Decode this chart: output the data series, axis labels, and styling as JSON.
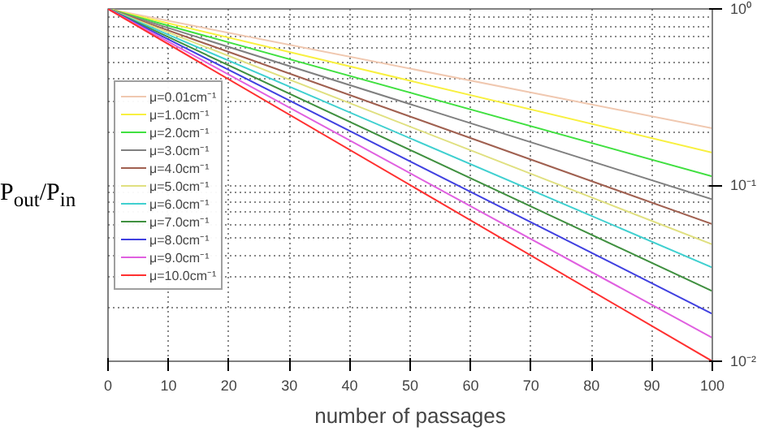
{
  "chart_data": {
    "type": "line",
    "xlabel": "number of passages",
    "ylabel": "P$_{out}$/P$_{in}$",
    "xlim": [
      0,
      100
    ],
    "xticks": [
      0,
      10,
      20,
      30,
      40,
      50,
      60,
      70,
      80,
      90,
      100
    ],
    "ylim": [
      0.01,
      1
    ],
    "yticks": [
      {
        "value": 1,
        "label": "10⁰"
      },
      {
        "value": 0.1,
        "label": "10⁻¹"
      },
      {
        "value": 0.01,
        "label": "10⁻²"
      }
    ],
    "x": [
      0,
      100
    ],
    "log": true,
    "grid": true,
    "legend": "left",
    "line_style": "solid",
    "marker": "none",
    "series": [
      {
        "name": "μ=0.01cm⁻¹",
        "color": "#f0c8b0",
        "values": [
          1,
          0.21
        ]
      },
      {
        "name": "μ=1.0cm⁻¹",
        "color": "#f8f040",
        "values": [
          1,
          0.153
        ]
      },
      {
        "name": "μ=2.0cm⁻¹",
        "color": "#40e040",
        "values": [
          1,
          0.112
        ]
      },
      {
        "name": "μ=3.0cm⁻¹",
        "color": "#808080",
        "values": [
          1,
          0.083
        ]
      },
      {
        "name": "μ=4.0cm⁻¹",
        "color": "#a06050",
        "values": [
          1,
          0.06
        ]
      },
      {
        "name": "μ=5.0cm⁻¹",
        "color": "#e0e080",
        "values": [
          1,
          0.046
        ]
      },
      {
        "name": "μ=6.0cm⁻¹",
        "color": "#40d0d0",
        "values": [
          1,
          0.034
        ]
      },
      {
        "name": "μ=7.0cm⁻¹",
        "color": "#409040",
        "values": [
          1,
          0.025
        ]
      },
      {
        "name": "μ=8.0cm⁻¹",
        "color": "#4040e0",
        "values": [
          1,
          0.0186
        ]
      },
      {
        "name": "μ=9.0cm⁻¹",
        "color": "#e060e0",
        "values": [
          1,
          0.0136
        ]
      },
      {
        "name": "μ=10.0cm⁻¹",
        "color": "#ff3030",
        "values": [
          1,
          0.01
        ]
      }
    ]
  }
}
